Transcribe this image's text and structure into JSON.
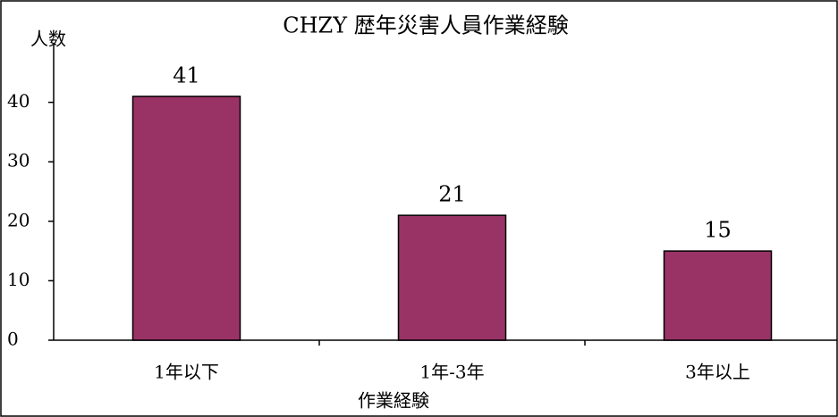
{
  "chart_data": {
    "type": "bar",
    "title": "CHZY 歴年災害人員作業経験",
    "y_label": "人数",
    "x_label": "作業経験",
    "categories": [
      "1年以下",
      "1年-3年",
      "3年以上"
    ],
    "values": [
      41,
      21,
      15
    ],
    "color": "#993366",
    "ylim": [
      0,
      50
    ],
    "yticks": [
      0,
      10,
      20,
      30,
      40
    ]
  }
}
